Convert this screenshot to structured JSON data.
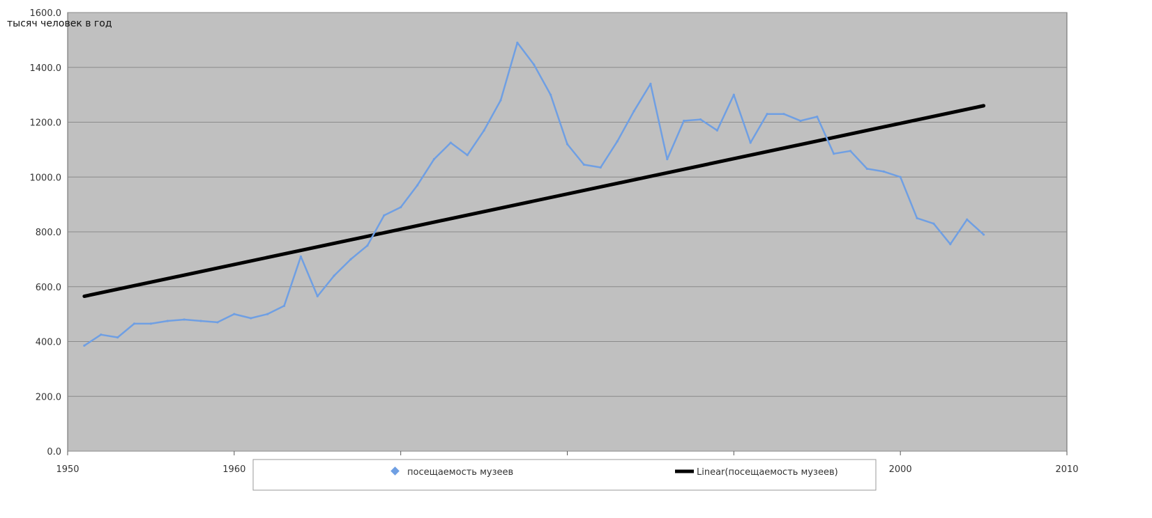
{
  "chart_data": {
    "type": "line",
    "title": "",
    "ylabel": "тысяч человек в год",
    "xlabel": "",
    "xlim": [
      1950,
      2010
    ],
    "ylim": [
      0,
      1600
    ],
    "grid": true,
    "legend_position": "bottom",
    "x_ticks": [
      "1950",
      "1960",
      "2000",
      "2010"
    ],
    "y_ticks": [
      "0.0",
      "200.0",
      "400.0",
      "600.0",
      "800.0",
      "1000.0",
      "1200.0",
      "1400.0",
      "1600.0"
    ],
    "colors": {
      "plot_background": "#c0c0c0",
      "series": "#6f9fe3",
      "trend": "#000000",
      "grid": "#8a8a8a"
    },
    "series": [
      {
        "name": "посещаемость музеев",
        "x": [
          1951,
          1952,
          1953,
          1954,
          1955,
          1956,
          1957,
          1958,
          1959,
          1960,
          1961,
          1962,
          1963,
          1964,
          1965,
          1966,
          1967,
          1968,
          1969,
          1970,
          1971,
          1972,
          1973,
          1974,
          1975,
          1976,
          1977,
          1978,
          1979,
          1980,
          1981,
          1982,
          1983,
          1984,
          1985,
          1986,
          1987,
          1988,
          1989,
          1990,
          1991,
          1992,
          1993,
          1994,
          1995,
          1996,
          1997,
          1998,
          1999,
          2000,
          2001,
          2002,
          2003,
          2004,
          2005
        ],
        "y": [
          385,
          425,
          415,
          465,
          465,
          475,
          480,
          475,
          470,
          500,
          485,
          500,
          530,
          710,
          565,
          640,
          700,
          750,
          860,
          890,
          970,
          1065,
          1125,
          1080,
          1170,
          1280,
          1490,
          1410,
          1300,
          1120,
          1045,
          1035,
          1130,
          1240,
          1340,
          1065,
          1205,
          1210,
          1170,
          1300,
          1125,
          1230,
          1230,
          1205,
          1220,
          1085,
          1095,
          1030,
          1020,
          1000,
          850,
          830,
          755,
          845,
          790
        ]
      }
    ],
    "trendline": {
      "name": "Linear(посещаемость музеев)",
      "x": [
        1951,
        2005
      ],
      "y": [
        565,
        1260
      ]
    },
    "legend": {
      "series_label": "посещаемость музеев",
      "trend_label": "Linear(посещаемость музеев)"
    }
  }
}
